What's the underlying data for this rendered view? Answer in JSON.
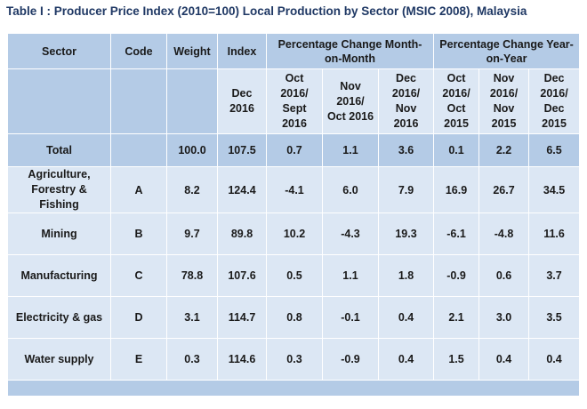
{
  "title": "Table I : Producer Price Index (2010=100) Local Production by Sector (MSIC 2008), Malaysia",
  "headers": {
    "sector": "Sector",
    "code": "Code",
    "weight": "Weight",
    "index": "Index",
    "mom": "Percentage Change Month-on-Month",
    "yoy": "Percentage Change Year-on-Year"
  },
  "subheaders": {
    "index_period": "Dec 2016",
    "mom": [
      "Oct 2016/ Sept 2016",
      "Nov 2016/ Oct 2016",
      "Dec 2016/ Nov 2016"
    ],
    "yoy": [
      "Oct 2016/ Oct 2015",
      "Nov 2016/ Nov 2015",
      "Dec 2016/ Dec 2015"
    ]
  },
  "total": {
    "sector": "Total",
    "code": "",
    "weight": "100.0",
    "index": "107.5",
    "mom": [
      "0.7",
      "1.1",
      "3.6"
    ],
    "yoy": [
      "0.1",
      "2.2",
      "6.5"
    ]
  },
  "rows": [
    {
      "sector": "Agriculture, Forestry & Fishing",
      "code": "A",
      "weight": "8.2",
      "index": "124.4",
      "mom": [
        "-4.1",
        "6.0",
        "7.9"
      ],
      "yoy": [
        "16.9",
        "26.7",
        "34.5"
      ]
    },
    {
      "sector": "Mining",
      "code": "B",
      "weight": "9.7",
      "index": "89.8",
      "mom": [
        "10.2",
        "-4.3",
        "19.3"
      ],
      "yoy": [
        "-6.1",
        "-4.8",
        "11.6"
      ]
    },
    {
      "sector": "Manufacturing",
      "code": "C",
      "weight": "78.8",
      "index": "107.6",
      "mom": [
        "0.5",
        "1.1",
        "1.8"
      ],
      "yoy": [
        "-0.9",
        "0.6",
        "3.7"
      ]
    },
    {
      "sector": "Electricity & gas",
      "code": "D",
      "weight": "3.1",
      "index": "114.7",
      "mom": [
        "0.8",
        "-0.1",
        "0.4"
      ],
      "yoy": [
        "2.1",
        "3.0",
        "3.5"
      ]
    },
    {
      "sector": "Water supply",
      "code": "E",
      "weight": "0.3",
      "index": "114.6",
      "mom": [
        "0.3",
        "-0.9",
        "0.4"
      ],
      "yoy": [
        "1.5",
        "0.4",
        "0.4"
      ]
    }
  ]
}
